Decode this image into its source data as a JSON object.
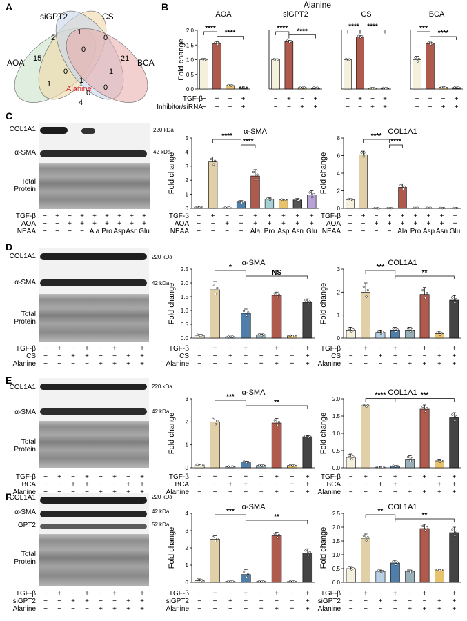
{
  "panels": {
    "A": "A",
    "B": "B",
    "C": "C",
    "D": "D",
    "E": "E",
    "F": "F"
  },
  "venn": {
    "sets": [
      "AOA",
      "siGPT2",
      "CS",
      "BCA"
    ],
    "counts": [
      "15",
      "2",
      "1",
      "0",
      "21",
      "0",
      "0",
      "1",
      "1",
      "1",
      "0",
      "0",
      "4"
    ],
    "center_label": "Alanine",
    "colors": [
      "#c9e2c9",
      "#f2d9aa",
      "#c8d6ea",
      "#eaa9a9"
    ]
  },
  "panel_b": {
    "title": "Alanine",
    "ylabel": "Fold change",
    "rows": {
      "tgf": "TGF-β",
      "inhib": "Inhibitor/siRNA"
    },
    "tgf_signs": [
      "−",
      "+",
      "−",
      "+"
    ],
    "inhib_signs": [
      "−",
      "−",
      "+",
      "+"
    ],
    "sig": [
      "****",
      "****"
    ],
    "groups": [
      "AOA",
      "siGPT2",
      "CS",
      "BCA"
    ],
    "sig_per_group": [
      [
        "****",
        "****"
      ],
      [
        "****",
        "****"
      ],
      [
        "****",
        "****"
      ],
      [
        "***",
        "****"
      ]
    ],
    "y_ticks": [
      "0.0",
      "0.5",
      "1.0",
      "1.5",
      "2.0"
    ]
  },
  "blots": {
    "c": {
      "bands": [
        "COL1A1",
        "α-SMA",
        "Total Protein"
      ],
      "kda": [
        "220 kDa",
        "42 kDa"
      ]
    },
    "d": {
      "bands": [
        "COL1A1",
        "α-SMA",
        "Total Protein"
      ],
      "kda": [
        "220 kDa",
        "42 kDa"
      ]
    },
    "e": {
      "bands": [
        "COL1A1",
        "α-SMA",
        "Total Protein"
      ],
      "kda": [
        "220 kDa",
        "42 kDa"
      ]
    },
    "f": {
      "bands": [
        "COL1A1",
        "α-SMA",
        "GPT2",
        "Total Protein"
      ],
      "kda": [
        "220 kDa",
        "42 kDa",
        "52 kDa"
      ]
    }
  },
  "conditions": {
    "c": {
      "labels": [
        "TGF-β",
        "AOA",
        "NEAA"
      ],
      "signs": [
        [
          "−",
          "+",
          "−",
          "+",
          "+",
          "+",
          "+",
          "+",
          "+"
        ],
        [
          "−",
          "−",
          "+",
          "+",
          "+",
          "+",
          "+",
          "+",
          "+"
        ],
        [
          "−",
          "−",
          "−",
          "−",
          "Ala",
          "Pro",
          "Asp",
          "Asn",
          "Glu"
        ]
      ]
    },
    "d": {
      "labels": [
        "TGF-β",
        "CS",
        "Alanine"
      ],
      "signs": [
        [
          "−",
          "+",
          "−",
          "+",
          "−",
          "+",
          "−",
          "+"
        ],
        [
          "−",
          "−",
          "+",
          "+",
          "−",
          "−",
          "+",
          "+"
        ],
        [
          "−",
          "−",
          "−",
          "−",
          "+",
          "+",
          "+",
          "+"
        ]
      ]
    },
    "e": {
      "labels": [
        "TGF-β",
        "BCA",
        "Alanine"
      ],
      "signs": [
        [
          "−",
          "+",
          "−",
          "+",
          "−",
          "+",
          "−",
          "+"
        ],
        [
          "−",
          "−",
          "+",
          "+",
          "−",
          "−",
          "+",
          "+"
        ],
        [
          "−",
          "−",
          "−",
          "−",
          "+",
          "+",
          "+",
          "+"
        ]
      ]
    },
    "f": {
      "labels": [
        "TGF-β",
        "siGPT2",
        "Alanine"
      ],
      "signs": [
        [
          "−",
          "+",
          "−",
          "+",
          "−",
          "+",
          "−",
          "+"
        ],
        [
          "−",
          "−",
          "+",
          "+",
          "−",
          "−",
          "+",
          "+"
        ],
        [
          "−",
          "−",
          "−",
          "−",
          "+",
          "+",
          "+",
          "+"
        ]
      ]
    }
  },
  "chart_data": [
    {
      "id": "b-aoa",
      "type": "bar",
      "title": "AOA",
      "ylabel": "Fold change",
      "ylim": [
        0,
        2
      ],
      "yticks": [
        0,
        0.5,
        1.0,
        1.5,
        2.0
      ],
      "values": [
        1.0,
        1.55,
        0.12,
        0.07
      ],
      "errors": [
        0.04,
        0.06,
        0.02,
        0.01
      ],
      "colors": [
        "#f4f0dc",
        "#b05a4e",
        "#e7c46b",
        "#444444"
      ],
      "sig": [
        {
          "a": 0,
          "b": 1,
          "text": "****"
        },
        {
          "a": 1,
          "b": 3,
          "text": "****"
        }
      ]
    },
    {
      "id": "b-sigpt2",
      "type": "bar",
      "title": "siGPT2",
      "ylabel": "",
      "ylim": [
        0,
        2
      ],
      "values": [
        1.0,
        1.62,
        0.05,
        0.04
      ],
      "errors": [
        0.03,
        0.04,
        0.01,
        0.01
      ],
      "colors": [
        "#f4f0dc",
        "#b05a4e",
        "#e7c46b",
        "#444444"
      ],
      "sig": [
        {
          "a": 0,
          "b": 1,
          "text": "****"
        },
        {
          "a": 1,
          "b": 3,
          "text": "****"
        }
      ]
    },
    {
      "id": "b-cs",
      "type": "bar",
      "title": "CS",
      "ylabel": "",
      "ylim": [
        0,
        2
      ],
      "values": [
        1.0,
        1.78,
        0.03,
        0.03
      ],
      "errors": [
        0.03,
        0.04,
        0.01,
        0.01
      ],
      "colors": [
        "#f4f0dc",
        "#b05a4e",
        "#e7c46b",
        "#444444"
      ],
      "sig": [
        {
          "a": 0,
          "b": 1,
          "text": "****"
        },
        {
          "a": 1,
          "b": 3,
          "text": "****"
        }
      ]
    },
    {
      "id": "b-bca",
      "type": "bar",
      "title": "BCA",
      "ylabel": "",
      "ylim": [
        0,
        2
      ],
      "values": [
        1.0,
        1.55,
        0.06,
        0.05
      ],
      "errors": [
        0.12,
        0.05,
        0.01,
        0.01
      ],
      "colors": [
        "#f4f0dc",
        "#b05a4e",
        "#e7c46b",
        "#444444"
      ],
      "sig": [
        {
          "a": 0,
          "b": 1,
          "text": "***"
        },
        {
          "a": 1,
          "b": 3,
          "text": "****"
        }
      ]
    },
    {
      "id": "c-sma",
      "type": "bar",
      "title": "α-SMA",
      "ylabel": "Fold change",
      "ylim": [
        0,
        5
      ],
      "yticks": [
        0,
        1,
        2,
        3,
        4,
        5
      ],
      "values": [
        0.1,
        3.3,
        0.05,
        0.45,
        2.3,
        0.65,
        0.6,
        0.6,
        0.95
      ],
      "errors": [
        0.05,
        0.35,
        0.02,
        0.1,
        0.45,
        0.1,
        0.05,
        0.1,
        0.3
      ],
      "colors": [
        "#f4f0dc",
        "#e0cfa7",
        "#b8d0e6",
        "#4f7fa8",
        "#b05a4e",
        "#a5d0d6",
        "#e7c46b",
        "#555555",
        "#b7a3d6"
      ],
      "sig": [
        {
          "a": 1,
          "b": 3,
          "text": "****"
        },
        {
          "a": 3,
          "b": 4,
          "text": "****"
        }
      ]
    },
    {
      "id": "c-col",
      "type": "bar",
      "title": "COL1A1",
      "ylabel": "Fold change",
      "ylim": [
        0,
        8
      ],
      "yticks": [
        0,
        2,
        4,
        6,
        8
      ],
      "values": [
        1.0,
        6.1,
        0.02,
        0.03,
        2.4,
        0.05,
        0.05,
        0.04,
        0.04
      ],
      "errors": [
        0.1,
        0.4,
        0.01,
        0.01,
        0.4,
        0.01,
        0.01,
        0.01,
        0.01
      ],
      "colors": [
        "#f4f0dc",
        "#e0cfa7",
        "#b8d0e6",
        "#4f7fa8",
        "#b05a4e",
        "#a5d0d6",
        "#e7c46b",
        "#555555",
        "#b7a3d6"
      ],
      "sig": [
        {
          "a": 1,
          "b": 3,
          "text": "****"
        },
        {
          "a": 3,
          "b": 4,
          "text": "****"
        }
      ]
    },
    {
      "id": "d-sma",
      "type": "bar",
      "title": "α-SMA",
      "ylabel": "Fold change",
      "ylim": [
        0,
        2.5
      ],
      "yticks": [
        0,
        0.5,
        1.0,
        1.5,
        2.0,
        2.5
      ],
      "values": [
        0.1,
        1.75,
        0.05,
        0.9,
        0.12,
        1.55,
        0.08,
        1.3
      ],
      "errors": [
        0.03,
        0.3,
        0.01,
        0.15,
        0.03,
        0.12,
        0.02,
        0.12
      ],
      "colors": [
        "#f4f0dc",
        "#e0cfa7",
        "#b8d0e6",
        "#4f7fa8",
        "#9ab0b8",
        "#b05a4e",
        "#e7c46b",
        "#444444"
      ],
      "sig": [
        {
          "a": 1,
          "b": 3,
          "text": "*"
        },
        {
          "a": 3,
          "b": 7,
          "text": "NS"
        }
      ]
    },
    {
      "id": "d-col",
      "type": "bar",
      "title": "COL1A1",
      "ylabel": "Fold change",
      "ylim": [
        0,
        3
      ],
      "yticks": [
        0,
        1,
        2,
        3
      ],
      "values": [
        0.35,
        2.0,
        0.25,
        0.35,
        0.35,
        1.9,
        0.2,
        1.65
      ],
      "errors": [
        0.12,
        0.4,
        0.1,
        0.12,
        0.12,
        0.3,
        0.1,
        0.2
      ],
      "colors": [
        "#f4f0dc",
        "#e0cfa7",
        "#b8d0e6",
        "#4f7fa8",
        "#9ab0b8",
        "#b05a4e",
        "#e7c46b",
        "#444444"
      ],
      "sig": [
        {
          "a": 1,
          "b": 3,
          "text": "***"
        },
        {
          "a": 3,
          "b": 7,
          "text": "**"
        }
      ]
    },
    {
      "id": "e-sma",
      "type": "bar",
      "title": "α-SMA",
      "ylabel": "Fold change",
      "ylim": [
        0,
        3
      ],
      "yticks": [
        0,
        1,
        2,
        3
      ],
      "values": [
        0.12,
        2.0,
        0.05,
        0.25,
        0.1,
        1.95,
        0.1,
        1.35
      ],
      "errors": [
        0.03,
        0.2,
        0.01,
        0.04,
        0.02,
        0.2,
        0.02,
        0.05
      ],
      "colors": [
        "#f4f0dc",
        "#e0cfa7",
        "#b8d0e6",
        "#4f7fa8",
        "#9ab0b8",
        "#b05a4e",
        "#e7c46b",
        "#444444"
      ],
      "sig": [
        {
          "a": 1,
          "b": 3,
          "text": "***"
        },
        {
          "a": 3,
          "b": 7,
          "text": "**"
        }
      ]
    },
    {
      "id": "e-col",
      "type": "bar",
      "title": "COL1A1",
      "ylabel": "Fold change",
      "ylim": [
        0,
        2.0
      ],
      "yticks": [
        0,
        0.5,
        1.0,
        1.5,
        2.0
      ],
      "values": [
        0.3,
        1.8,
        0.02,
        0.05,
        0.25,
        1.7,
        0.2,
        1.45
      ],
      "errors": [
        0.1,
        0.05,
        0.01,
        0.01,
        0.1,
        0.12,
        0.05,
        0.15
      ],
      "colors": [
        "#f4f0dc",
        "#e0cfa7",
        "#b8d0e6",
        "#4f7fa8",
        "#9ab0b8",
        "#b05a4e",
        "#e7c46b",
        "#444444"
      ],
      "sig": [
        {
          "a": 1,
          "b": 3,
          "text": "****"
        },
        {
          "a": 3,
          "b": 7,
          "text": "***"
        }
      ]
    },
    {
      "id": "f-sma",
      "type": "bar",
      "title": "α-SMA",
      "ylabel": "Fold change",
      "ylim": [
        0,
        4
      ],
      "yticks": [
        0,
        1,
        2,
        3,
        4
      ],
      "values": [
        0.1,
        2.5,
        0.05,
        0.45,
        0.05,
        2.7,
        0.05,
        1.7
      ],
      "errors": [
        0.1,
        0.2,
        0.02,
        0.3,
        0.02,
        0.2,
        0.02,
        0.25
      ],
      "colors": [
        "#f4f0dc",
        "#e0cfa7",
        "#b8d0e6",
        "#4f7fa8",
        "#9ab0b8",
        "#b05a4e",
        "#e7c46b",
        "#444444"
      ],
      "sig": [
        {
          "a": 1,
          "b": 3,
          "text": "***"
        },
        {
          "a": 3,
          "b": 7,
          "text": "**"
        }
      ]
    },
    {
      "id": "f-col",
      "type": "bar",
      "title": "COL1A1",
      "ylabel": "Fold change",
      "ylim": [
        0,
        2.5
      ],
      "yticks": [
        0,
        0.5,
        1.0,
        1.5,
        2.0,
        2.5
      ],
      "values": [
        0.5,
        1.6,
        0.4,
        0.7,
        0.4,
        1.95,
        0.45,
        1.8
      ],
      "errors": [
        0.05,
        0.15,
        0.05,
        0.1,
        0.05,
        0.15,
        0.02,
        0.2
      ],
      "colors": [
        "#f4f0dc",
        "#e0cfa7",
        "#b8d0e6",
        "#4f7fa8",
        "#9ab0b8",
        "#b05a4e",
        "#e7c46b",
        "#444444"
      ],
      "sig": [
        {
          "a": 1,
          "b": 3,
          "text": "**"
        },
        {
          "a": 3,
          "b": 7,
          "text": "**"
        }
      ]
    }
  ]
}
